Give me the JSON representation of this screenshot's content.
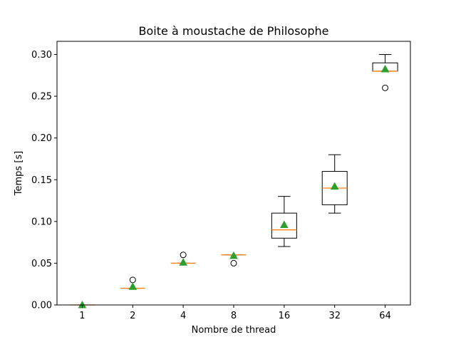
{
  "chart_data": {
    "type": "boxplot",
    "title": "Boite à moustache de Philosophe",
    "xlabel": "Nombre de thread",
    "ylabel": "Temps [s]",
    "ylim": [
      0.0,
      0.3
    ],
    "yticks": [
      "0.00",
      "0.05",
      "0.10",
      "0.15",
      "0.20",
      "0.25",
      "0.30"
    ],
    "categories": [
      "1",
      "2",
      "4",
      "8",
      "16",
      "32",
      "64"
    ],
    "grid": false,
    "colors": {
      "box": "#000000",
      "median": "#ff7f0e",
      "mean": "#2ca02c",
      "outlier": "#000000"
    },
    "boxes": [
      {
        "category": "1",
        "whislo": 0.0,
        "q1": 0.0,
        "med": 0.0,
        "q3": 0.0,
        "whishi": 0.0,
        "mean": 0.0,
        "fliers": []
      },
      {
        "category": "2",
        "whislo": 0.02,
        "q1": 0.02,
        "med": 0.02,
        "q3": 0.02,
        "whishi": 0.02,
        "mean": 0.022,
        "fliers": [
          0.03
        ]
      },
      {
        "category": "4",
        "whislo": 0.05,
        "q1": 0.05,
        "med": 0.05,
        "q3": 0.05,
        "whishi": 0.05,
        "mean": 0.051,
        "fliers": [
          0.06
        ]
      },
      {
        "category": "8",
        "whislo": 0.06,
        "q1": 0.06,
        "med": 0.06,
        "q3": 0.06,
        "whishi": 0.06,
        "mean": 0.059,
        "fliers": [
          0.05
        ]
      },
      {
        "category": "16",
        "whislo": 0.07,
        "q1": 0.08,
        "med": 0.09,
        "q3": 0.11,
        "whishi": 0.13,
        "mean": 0.096,
        "fliers": []
      },
      {
        "category": "32",
        "whislo": 0.11,
        "q1": 0.12,
        "med": 0.14,
        "q3": 0.16,
        "whishi": 0.18,
        "mean": 0.142,
        "fliers": []
      },
      {
        "category": "64",
        "whislo": 0.28,
        "q1": 0.28,
        "med": 0.28,
        "q3": 0.29,
        "whishi": 0.3,
        "mean": 0.2825,
        "fliers": [
          0.26
        ]
      }
    ]
  }
}
